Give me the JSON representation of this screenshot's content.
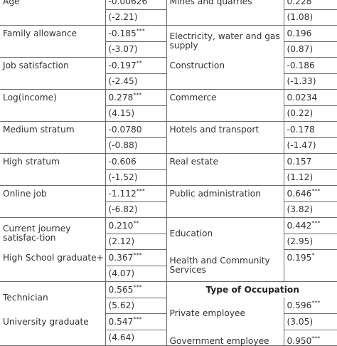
{
  "left_rows": [
    {
      "label": "Age",
      "coef": "-0.00626",
      "se": "(-2.21)"
    },
    {
      "label": "Family allowance",
      "coef": "-0.185***",
      "se": "(-3.07)"
    },
    {
      "label": "Job satisfaction",
      "coef": "-0.197**",
      "se": "(-2.45)"
    },
    {
      "label": "Log(income)",
      "coef": "0.278***",
      "se": "(4.15)"
    },
    {
      "label": "Medium stratum",
      "coef": "-0.0780",
      "se": "(-0.88)"
    },
    {
      "label": "High stratum",
      "coef": "-0.606",
      "se": "(-1.52)"
    },
    {
      "label": "Online job",
      "coef": "-1.112***",
      "se": "(-6.82)"
    },
    {
      "label": "Current journey satisfac-tion",
      "coef": "0.210**",
      "se": "(2.12)"
    },
    {
      "label": "High School graduate+",
      "coef": "0.367***",
      "se": "(4.07)"
    },
    {
      "label": "Technician",
      "coef": "0.565***",
      "se": "(5.62)"
    },
    {
      "label": "University graduate",
      "coef": "0.547***",
      "se": "(4.64)"
    }
  ],
  "right_rows": [
    {
      "label": "Mines and quarries",
      "coef": "0.228",
      "se": "(1.08)"
    },
    {
      "label": "Electricity, water and gas supply",
      "coef": "0.196",
      "se": "(0.87)"
    },
    {
      "label": "Construction",
      "coef": "-0.186",
      "se": "(-1.33)"
    },
    {
      "label": "Commerce",
      "coef": "0.0234",
      "se": "(0.22)"
    },
    {
      "label": "Hotels and transport",
      "coef": "-0.178",
      "se": "(-1.47)"
    },
    {
      "label": "Real estate",
      "coef": "0.157",
      "se": "(1.12)"
    },
    {
      "label": "Public administration",
      "coef": "0.646***",
      "se": "(3.82)"
    },
    {
      "label": "Education",
      "coef": "0.442***",
      "se": "(2.95)"
    },
    {
      "label": "Health and Community Services",
      "coef": "0.195*",
      "se": ""
    },
    {
      "section": "Type of Occupation"
    },
    {
      "label": "Private employee",
      "coef": "0.596***",
      "se": "(3.05)"
    },
    {
      "label": "Government employee",
      "coef": "0.950***",
      "se": ""
    }
  ]
}
